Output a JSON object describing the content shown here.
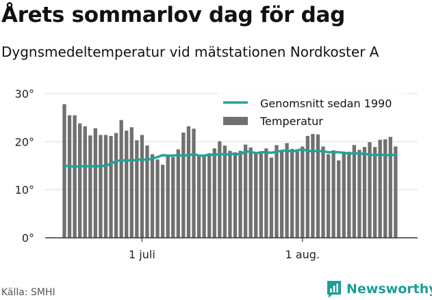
{
  "header": {
    "title": "Årets sommarlov dag för dag",
    "subtitle": "Dygnsmedeltemperatur vid mätstationen Nordkoster A"
  },
  "footer": {
    "source": "Källa: SMHI",
    "brand": "Newsworthy"
  },
  "colors": {
    "bars": "#707070",
    "line": "#1fa39b",
    "brand": "#1c9e95"
  },
  "chart_data": {
    "type": "bar",
    "title": "Årets sommarlov dag för dag",
    "subtitle": "Dygnsmedeltemperatur vid mätstationen Nordkoster A",
    "x_ticks": [
      "1 juli",
      "1 aug."
    ],
    "y_ticks": [
      "0°",
      "10°",
      "20°",
      "30°"
    ],
    "ylim": [
      0,
      30
    ],
    "grid": true,
    "legend": "top-right",
    "series": [
      {
        "name": "Temperatur",
        "kind": "bar",
        "values": [
          27.8,
          25.5,
          25.5,
          23.8,
          23.2,
          21.3,
          22.8,
          21.4,
          21.4,
          21.2,
          21.8,
          24.5,
          22.3,
          23.0,
          20.3,
          21.4,
          19.2,
          17.4,
          16.3,
          15.2,
          17.2,
          16.8,
          18.4,
          21.9,
          23.2,
          22.7,
          17.3,
          17.1,
          17.6,
          18.6,
          20.1,
          19.2,
          18.1,
          17.8,
          18.1,
          19.4,
          18.8,
          17.8,
          17.9,
          18.6,
          16.7,
          19.3,
          17.9,
          19.7,
          18.5,
          18.4,
          19.0,
          21.2,
          21.6,
          21.5,
          19.0,
          17.4,
          18.2,
          16.1,
          17.5,
          17.9,
          19.3,
          18.3,
          18.9,
          19.9,
          18.9,
          20.4,
          20.5,
          21.0,
          19.0
        ]
      },
      {
        "name": "Genomsnitt sedan 1990",
        "kind": "line",
        "values": [
          15.0,
          14.9,
          14.8,
          14.9,
          14.9,
          14.9,
          14.9,
          14.9,
          15.0,
          15.4,
          16.0,
          16.1,
          16.1,
          16.1,
          16.2,
          16.3,
          16.2,
          16.5,
          16.8,
          17.2,
          17.1,
          17.1,
          17.2,
          17.1,
          17.2,
          17.4,
          17.1,
          17.1,
          17.3,
          17.2,
          17.5,
          17.3,
          17.4,
          17.5,
          17.3,
          18.0,
          17.9,
          17.6,
          17.8,
          17.8,
          17.7,
          17.9,
          18.1,
          18.2,
          17.9,
          18.2,
          18.4,
          18.1,
          18.0,
          18.1,
          18.0,
          17.8,
          17.8,
          17.8,
          17.7,
          17.5,
          17.6,
          17.5,
          17.5,
          17.3,
          17.2,
          17.3,
          17.2,
          17.2,
          17.3
        ]
      }
    ]
  }
}
